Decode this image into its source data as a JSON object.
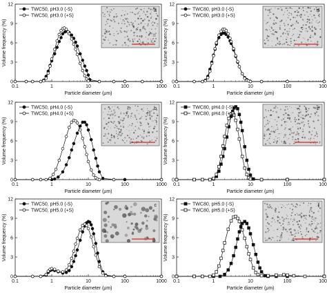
{
  "x_axis_label": "Particle diameter (μm)",
  "y_axis_label": "Volume frequency (%)",
  "chart_data": [
    {
      "panel": "a",
      "type": "scatter",
      "xscale": "log",
      "xlim": [
        0.1,
        1000
      ],
      "ylim": [
        0,
        12
      ],
      "xticks": [
        "0.1",
        "1",
        "10",
        "100",
        "1000"
      ],
      "yticks": [
        "0",
        "3",
        "6",
        "9",
        "12"
      ],
      "series": [
        {
          "name": "TWC50, pH3.0 (-S)",
          "marker": "filled-circle",
          "x": [
            0.1,
            0.2,
            0.3,
            0.5,
            0.6,
            0.7,
            0.8,
            0.9,
            1.0,
            1.2,
            1.4,
            1.6,
            1.8,
            2.0,
            2.3,
            2.6,
            3.0,
            3.5,
            4.0,
            4.5,
            5.0,
            6.0,
            7.0,
            8.0,
            9.0,
            10.0,
            11.0,
            20,
            50,
            100,
            300,
            1000
          ],
          "y": [
            0,
            0,
            0,
            0,
            0.2,
            0.8,
            1.6,
            2.5,
            3.2,
            4.3,
            5.3,
            6.2,
            6.8,
            7.4,
            7.7,
            7.8,
            7.6,
            7.2,
            6.7,
            6.1,
            5.5,
            4.3,
            3.3,
            2.4,
            1.7,
            1.0,
            0.3,
            0,
            0,
            0,
            0,
            0
          ]
        },
        {
          "name": "TWC50, pH3.0 (+S)",
          "marker": "open-circle",
          "x": [
            0.1,
            0.2,
            0.3,
            0.5,
            0.6,
            0.7,
            0.8,
            0.9,
            1.0,
            1.2,
            1.4,
            1.6,
            1.8,
            2.0,
            2.2,
            2.5,
            2.8,
            3.0,
            3.5,
            4.0,
            4.5,
            5.0,
            6.0,
            7.0,
            8.0,
            9.0,
            10.0,
            20,
            50,
            100,
            300,
            1000
          ],
          "y": [
            0,
            0,
            0,
            0,
            0.1,
            0.5,
            1.3,
            2.4,
            3.5,
            5.0,
            6.3,
            7.3,
            7.9,
            8.2,
            8.3,
            8.1,
            7.7,
            7.4,
            6.6,
            5.8,
            5.0,
            4.2,
            2.8,
            1.7,
            0.9,
            0.4,
            0.1,
            0,
            0,
            0,
            0,
            0
          ]
        }
      ]
    },
    {
      "panel": "b",
      "type": "scatter",
      "xscale": "log",
      "xlim": [
        0.1,
        1000
      ],
      "ylim": [
        0,
        12
      ],
      "xticks": [
        "0.1",
        "1",
        "10",
        "100",
        "1000"
      ],
      "yticks": [
        "0",
        "3",
        "6",
        "9",
        "12"
      ],
      "series": [
        {
          "name": "TWC50, pH4.0 (-S)",
          "marker": "filled-circle",
          "x": [
            0.1,
            0.3,
            0.5,
            1.0,
            1.2,
            1.5,
            2.0,
            2.5,
            3.0,
            3.5,
            4.0,
            5.0,
            6.0,
            7.0,
            8.0,
            9.0,
            10,
            12,
            14,
            16,
            18,
            20,
            25,
            50,
            100,
            1000
          ],
          "y": [
            0,
            0,
            0,
            0,
            0.1,
            0.4,
            1.2,
            2.3,
            3.4,
            4.6,
            5.6,
            7.2,
            8.3,
            8.9,
            8.9,
            8.5,
            7.7,
            6.2,
            4.6,
            3.3,
            2.1,
            1.2,
            0.2,
            0,
            0,
            0
          ]
        },
        {
          "name": "TWC50, pH4.0 (+S)",
          "marker": "open-circle",
          "x": [
            0.1,
            0.3,
            0.5,
            0.7,
            0.9,
            1.1,
            1.3,
            1.6,
            2.0,
            2.5,
            3.0,
            3.5,
            4.0,
            4.5,
            5.0,
            6.0,
            7.0,
            8.0,
            9.0,
            10,
            12,
            14,
            16,
            18,
            20,
            50,
            1000
          ],
          "y": [
            0,
            0,
            0,
            0,
            0.2,
            0.8,
            1.6,
            3.0,
            4.8,
            6.7,
            8.1,
            8.9,
            9.2,
            9.1,
            8.8,
            7.7,
            6.4,
            5.1,
            3.9,
            2.8,
            1.5,
            0.7,
            0.3,
            0.1,
            0,
            0,
            0
          ]
        }
      ]
    },
    {
      "panel": "c",
      "type": "scatter",
      "xscale": "log",
      "xlim": [
        0.1,
        1000
      ],
      "ylim": [
        0,
        12
      ],
      "xticks": [
        "0.1",
        "1",
        "10",
        "100",
        "1000"
      ],
      "yticks": [
        "0",
        "3",
        "6",
        "9",
        "12"
      ],
      "series": [
        {
          "name": "TWC50, pH5.0 (-S)",
          "marker": "filled-circle",
          "x": [
            0.1,
            0.3,
            0.5,
            0.7,
            0.8,
            0.9,
            1.0,
            1.2,
            1.5,
            2.0,
            2.5,
            3.0,
            3.5,
            4.0,
            4.5,
            5.0,
            6.0,
            7.0,
            8.0,
            9.0,
            10,
            11,
            12,
            13,
            14,
            16,
            18,
            20,
            25,
            30,
            50,
            100,
            1000
          ],
          "y": [
            0,
            0,
            0,
            0.2,
            0.6,
            0.9,
            1.0,
            0.9,
            0.7,
            0.5,
            0.6,
            0.9,
            1.5,
            2.3,
            3.2,
            4.1,
            5.6,
            6.9,
            7.8,
            8.3,
            8.5,
            8.4,
            8.0,
            7.4,
            6.6,
            5.1,
            3.6,
            2.3,
            0.7,
            0.2,
            0,
            0,
            0
          ]
        },
        {
          "name": "TWC50, pH5.0 (+S)",
          "marker": "open-circle",
          "x": [
            0.1,
            0.3,
            0.5,
            0.7,
            0.8,
            0.9,
            1.0,
            1.2,
            1.5,
            2.0,
            2.5,
            3.0,
            3.5,
            4.0,
            4.5,
            5.0,
            6.0,
            7.0,
            8.0,
            9.0,
            10,
            12,
            14,
            16,
            20,
            25,
            30,
            50,
            100,
            1000
          ],
          "y": [
            0,
            0,
            0,
            0.3,
            0.8,
            1.1,
            1.2,
            1.1,
            0.8,
            0.7,
            1.0,
            1.8,
            2.8,
            3.9,
            5.0,
            5.9,
            7.2,
            7.9,
            8.1,
            7.9,
            7.4,
            6.1,
            4.6,
            3.3,
            1.5,
            0.5,
            0.1,
            0,
            0,
            0
          ]
        }
      ]
    },
    {
      "panel": "d",
      "type": "scatter",
      "xscale": "log",
      "xlim": [
        0.1,
        1000
      ],
      "ylim": [
        0,
        12
      ],
      "xticks": [
        "0.1",
        "1",
        "10",
        "100",
        "1000"
      ],
      "yticks": [
        "0",
        "3",
        "6",
        "9",
        "12"
      ],
      "series": [
        {
          "name": "TWC80, pH3.0 (-S)",
          "marker": "filled-circle",
          "x": [
            0.1,
            0.3,
            0.5,
            0.6,
            0.7,
            0.8,
            0.9,
            1.0,
            1.1,
            1.2,
            1.4,
            1.6,
            1.8,
            2.0,
            2.2,
            2.5,
            2.8,
            3.0,
            3.5,
            4.0,
            4.5,
            5.0,
            6.0,
            7.0,
            8.0,
            9.0,
            10,
            20,
            100,
            1000
          ],
          "y": [
            0,
            0,
            0,
            0.2,
            0.8,
            1.9,
            3.0,
            4.1,
            5.0,
            5.8,
            6.8,
            7.3,
            7.5,
            7.5,
            7.3,
            6.9,
            6.3,
            5.9,
            4.9,
            3.9,
            3.0,
            2.3,
            1.2,
            0.6,
            0.3,
            0.1,
            0,
            0,
            0,
            0
          ]
        },
        {
          "name": "TWC80, pH3.0 (+S)",
          "marker": "open-circle",
          "x": [
            0.1,
            0.3,
            0.5,
            0.6,
            0.7,
            0.8,
            0.9,
            1.0,
            1.1,
            1.2,
            1.4,
            1.6,
            1.8,
            2.0,
            2.2,
            2.5,
            2.8,
            3.0,
            3.5,
            4.0,
            4.5,
            5.0,
            6.0,
            7.0,
            8.0,
            9.0,
            10,
            20,
            100,
            1000
          ],
          "y": [
            0,
            0,
            0,
            0.1,
            0.6,
            1.6,
            2.8,
            4.0,
            5.1,
            6.0,
            7.2,
            7.8,
            8.1,
            8.1,
            7.9,
            7.4,
            6.7,
            6.2,
            5.1,
            4.0,
            3.1,
            2.3,
            1.2,
            0.5,
            0.2,
            0.1,
            0,
            0,
            0,
            0
          ]
        }
      ]
    },
    {
      "panel": "e",
      "type": "scatter",
      "xscale": "log",
      "xlim": [
        0.1,
        1000
      ],
      "ylim": [
        0,
        12
      ],
      "xticks": [
        "0.1",
        "1",
        "10",
        "100",
        "1000"
      ],
      "yticks": [
        "0",
        "3",
        "6",
        "9",
        "12"
      ],
      "series": [
        {
          "name": "TWC80, pH4.0 (-S)",
          "marker": "filled-square",
          "x": [
            0.1,
            0.3,
            0.5,
            0.8,
            1.0,
            1.2,
            1.4,
            1.6,
            1.8,
            2.0,
            2.3,
            2.6,
            3.0,
            3.3,
            3.6,
            4.0,
            4.5,
            5.0,
            5.5,
            6.0,
            7.0,
            8.0,
            9.0,
            10,
            12,
            20,
            100,
            1000
          ],
          "y": [
            0,
            0,
            0,
            0,
            0.1,
            0.5,
            1.3,
            2.4,
            3.6,
            4.8,
            6.6,
            8.2,
            9.8,
            10.6,
            11.1,
            11.3,
            11.0,
            10.1,
            8.9,
            7.6,
            5.1,
            3.0,
            1.6,
            0.7,
            0.1,
            0,
            0,
            0
          ]
        },
        {
          "name": "TWC80, pH4.0 (+S)",
          "marker": "open-square",
          "x": [
            0.1,
            0.3,
            0.5,
            0.8,
            1.0,
            1.2,
            1.4,
            1.6,
            1.8,
            2.0,
            2.3,
            2.6,
            3.0,
            3.3,
            3.6,
            4.0,
            4.5,
            5.0,
            6.0,
            7.0,
            8.0,
            9.0,
            10,
            20,
            100,
            1000
          ],
          "y": [
            0,
            0,
            0,
            0,
            0.2,
            0.8,
            2.0,
            3.6,
            5.2,
            6.7,
            8.4,
            9.5,
            10.2,
            10.3,
            10.0,
            9.2,
            7.8,
            6.3,
            3.6,
            1.8,
            0.8,
            0.3,
            0.1,
            0,
            0,
            0
          ]
        }
      ]
    },
    {
      "panel": "f",
      "type": "scatter",
      "xscale": "log",
      "xlim": [
        0.1,
        1000
      ],
      "ylim": [
        0,
        12
      ],
      "xticks": [
        "0.1",
        "1",
        "10",
        "100",
        "1000"
      ],
      "yticks": [
        "0",
        "3",
        "6",
        "9",
        "12"
      ],
      "series": [
        {
          "name": "TWC80, pH5.0 (-S)",
          "marker": "filled-square",
          "x": [
            0.1,
            0.3,
            0.5,
            1.0,
            1.5,
            2.0,
            2.5,
            3.0,
            3.5,
            4.0,
            4.5,
            5.0,
            5.5,
            6.0,
            7.0,
            8.0,
            9.0,
            10,
            12,
            14,
            16,
            18,
            20,
            25,
            30,
            50,
            100,
            1000
          ],
          "y": [
            0,
            0,
            0,
            0,
            0,
            0.3,
            1.0,
            2.0,
            3.2,
            4.5,
            5.8,
            6.9,
            7.7,
            8.2,
            8.5,
            8.2,
            7.5,
            6.6,
            4.9,
            3.4,
            2.2,
            1.3,
            0.7,
            0.1,
            0,
            0,
            0,
            0
          ]
        },
        {
          "name": "TWC80, pH5.0 (+S)",
          "marker": "open-square",
          "x": [
            0.1,
            0.3,
            0.5,
            0.8,
            1.0,
            1.2,
            1.4,
            1.6,
            1.8,
            2.0,
            2.5,
            3.0,
            3.5,
            4.0,
            4.5,
            5.0,
            6.0,
            7.0,
            8.0,
            9.0,
            10,
            12,
            14,
            16,
            20,
            30,
            50,
            80,
            100,
            150,
            300,
            1000
          ],
          "y": [
            0,
            0,
            0,
            0,
            0.2,
            0.7,
            1.6,
            2.8,
            4.0,
            5.2,
            7.3,
            8.6,
            9.2,
            9.3,
            9.0,
            8.5,
            7.2,
            5.9,
            4.6,
            3.5,
            2.6,
            1.3,
            0.6,
            0.3,
            0.1,
            0.1,
            0.2,
            0.25,
            0.2,
            0.1,
            0,
            0
          ]
        }
      ]
    }
  ],
  "insets": [
    {
      "panel": "a",
      "label": "a"
    },
    {
      "panel": "b",
      "label": "b"
    },
    {
      "panel": "c",
      "label": "c"
    },
    {
      "panel": "d",
      "label": "d"
    },
    {
      "panel": "e",
      "label": "e"
    },
    {
      "panel": "f",
      "label": "f"
    }
  ]
}
